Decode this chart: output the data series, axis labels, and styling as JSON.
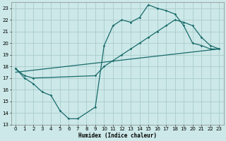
{
  "xlabel": "Humidex (Indice chaleur)",
  "xlim": [
    -0.5,
    23.5
  ],
  "ylim": [
    13,
    23.5
  ],
  "yticks": [
    13,
    14,
    15,
    16,
    17,
    18,
    19,
    20,
    21,
    22,
    23
  ],
  "xticks": [
    0,
    1,
    2,
    3,
    4,
    5,
    6,
    7,
    8,
    9,
    10,
    11,
    12,
    13,
    14,
    15,
    16,
    17,
    18,
    19,
    20,
    21,
    22,
    23
  ],
  "background_color": "#cce8e8",
  "grid_color": "#aacccc",
  "line_color": "#1a6b6b",
  "line1_x": [
    0,
    1,
    2,
    3,
    4,
    5,
    6,
    7,
    9,
    10,
    11,
    12,
    13,
    14,
    15,
    16,
    17,
    18,
    19,
    20,
    21,
    22,
    23
  ],
  "line1_y": [
    17.8,
    17.0,
    16.5,
    15.8,
    15.5,
    14.2,
    13.5,
    13.5,
    14.5,
    19.8,
    21.5,
    22.0,
    21.8,
    22.2,
    23.3,
    23.0,
    22.8,
    22.5,
    21.5,
    20.0,
    19.8,
    19.5,
    19.5
  ],
  "line2_x": [
    0,
    1,
    2,
    9,
    10,
    11,
    12,
    13,
    14,
    15,
    16,
    17,
    18,
    19,
    20,
    21,
    22,
    23
  ],
  "line2_y": [
    17.8,
    17.2,
    17.0,
    17.2,
    18.0,
    18.5,
    19.0,
    19.5,
    20.0,
    20.5,
    21.0,
    21.5,
    22.0,
    21.8,
    21.5,
    20.5,
    19.8,
    19.5
  ],
  "line3_x": [
    0,
    23
  ],
  "line3_y": [
    17.5,
    19.5
  ]
}
